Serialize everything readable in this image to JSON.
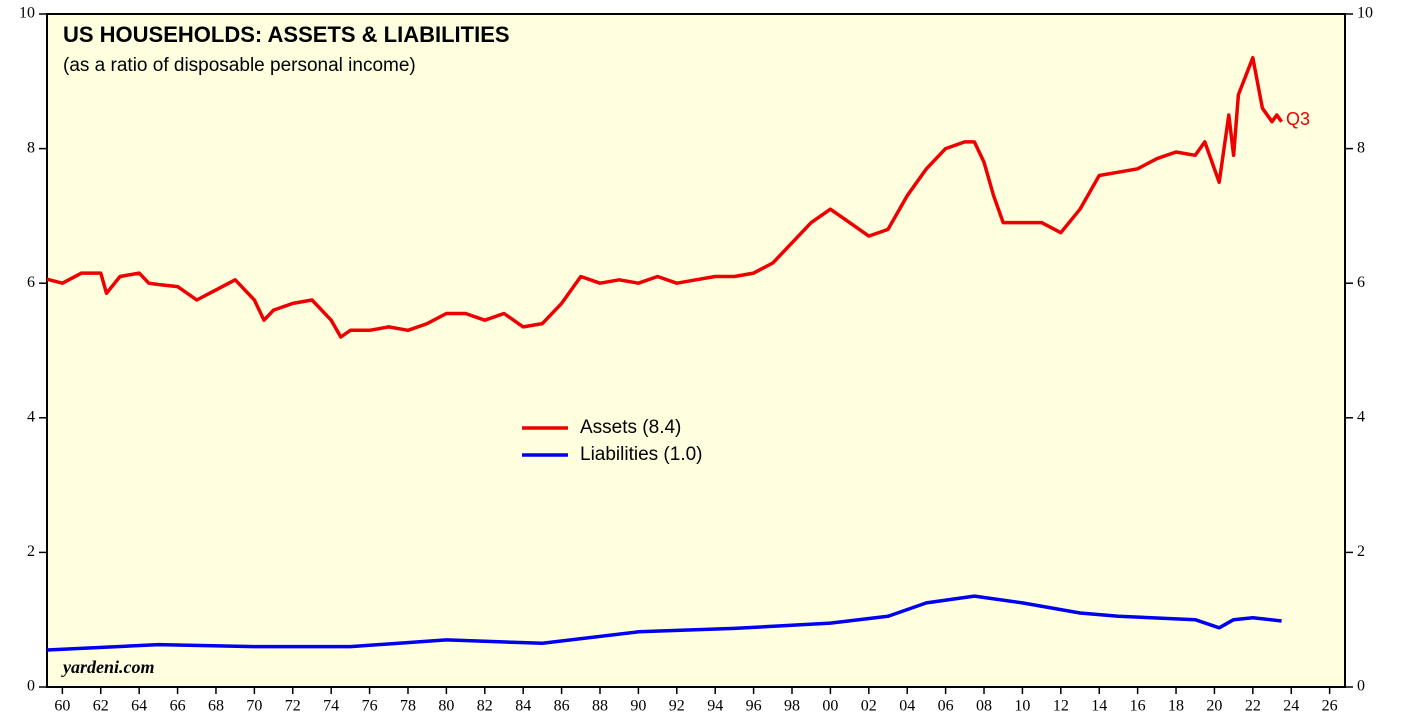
{
  "chart_data": {
    "type": "line",
    "title": "US HOUSEHOLDS: ASSETS & LIABILITIES",
    "subtitle": "(as a ratio of disposable personal income)",
    "source": "yardeni.com",
    "annotation": "Q3",
    "xlim": [
      1959.2,
      2026.8
    ],
    "ylim": [
      0,
      10
    ],
    "yticks": [
      0,
      2,
      4,
      6,
      8,
      10
    ],
    "xticks": [
      {
        "value": 1960,
        "label": "60"
      },
      {
        "value": 1962,
        "label": "62"
      },
      {
        "value": 1964,
        "label": "64"
      },
      {
        "value": 1966,
        "label": "66"
      },
      {
        "value": 1968,
        "label": "68"
      },
      {
        "value": 1970,
        "label": "70"
      },
      {
        "value": 1972,
        "label": "72"
      },
      {
        "value": 1974,
        "label": "74"
      },
      {
        "value": 1976,
        "label": "76"
      },
      {
        "value": 1978,
        "label": "78"
      },
      {
        "value": 1980,
        "label": "80"
      },
      {
        "value": 1982,
        "label": "82"
      },
      {
        "value": 1984,
        "label": "84"
      },
      {
        "value": 1986,
        "label": "86"
      },
      {
        "value": 1988,
        "label": "88"
      },
      {
        "value": 1990,
        "label": "90"
      },
      {
        "value": 1992,
        "label": "92"
      },
      {
        "value": 1994,
        "label": "94"
      },
      {
        "value": 1996,
        "label": "96"
      },
      {
        "value": 1998,
        "label": "98"
      },
      {
        "value": 2000,
        "label": "00"
      },
      {
        "value": 2002,
        "label": "02"
      },
      {
        "value": 2004,
        "label": "04"
      },
      {
        "value": 2006,
        "label": "06"
      },
      {
        "value": 2008,
        "label": "08"
      },
      {
        "value": 2010,
        "label": "10"
      },
      {
        "value": 2012,
        "label": "12"
      },
      {
        "value": 2014,
        "label": "14"
      },
      {
        "value": 2016,
        "label": "16"
      },
      {
        "value": 2018,
        "label": "18"
      },
      {
        "value": 2020,
        "label": "20"
      },
      {
        "value": 2022,
        "label": "22"
      },
      {
        "value": 2024,
        "label": "24"
      },
      {
        "value": 2026,
        "label": "26"
      }
    ],
    "series": [
      {
        "name": "Assets (8.4)",
        "color": "#ee0000",
        "x": [
          1959.2,
          1960,
          1961,
          1962,
          1962.3,
          1963,
          1964,
          1964.5,
          1965,
          1966,
          1967,
          1968,
          1969,
          1970,
          1970.5,
          1971,
          1972,
          1973,
          1974,
          1974.5,
          1975,
          1976,
          1977,
          1978,
          1979,
          1980,
          1981,
          1982,
          1983,
          1984,
          1985,
          1986,
          1987,
          1988,
          1989,
          1990,
          1991,
          1992,
          1993,
          1994,
          1995,
          1996,
          1997,
          1998,
          1999,
          2000,
          2001,
          2002,
          2003,
          2004,
          2005,
          2006,
          2007,
          2007.5,
          2008,
          2008.5,
          2009,
          2010,
          2011,
          2012,
          2013,
          2014,
          2015,
          2016,
          2017,
          2018,
          2019,
          2019.5,
          2020.25,
          2020.75,
          2021,
          2021.25,
          2022,
          2022.5,
          2023,
          2023.25,
          2023.5
        ],
        "values": [
          6.06,
          6.0,
          6.15,
          6.15,
          5.85,
          6.1,
          6.15,
          6.0,
          5.98,
          5.95,
          5.75,
          5.9,
          6.05,
          5.75,
          5.45,
          5.6,
          5.7,
          5.75,
          5.45,
          5.2,
          5.3,
          5.3,
          5.35,
          5.3,
          5.4,
          5.55,
          5.55,
          5.45,
          5.55,
          5.35,
          5.4,
          5.7,
          6.1,
          6.0,
          6.05,
          6.0,
          6.1,
          6.0,
          6.05,
          6.1,
          6.1,
          6.15,
          6.3,
          6.6,
          6.9,
          7.1,
          6.9,
          6.7,
          6.8,
          7.3,
          7.7,
          8.0,
          8.1,
          8.1,
          7.8,
          7.3,
          6.9,
          6.9,
          6.9,
          6.75,
          7.1,
          7.6,
          7.65,
          7.7,
          7.85,
          7.95,
          7.9,
          8.1,
          7.5,
          8.5,
          7.9,
          8.8,
          9.35,
          8.6,
          8.4,
          8.5,
          8.4
        ]
      },
      {
        "name": "Liabilities (1.0)",
        "color": "#0000ee",
        "x": [
          1959.2,
          1965,
          1970,
          1975,
          1980,
          1985,
          1990,
          1995,
          2000,
          2003,
          2005,
          2007.5,
          2010,
          2013,
          2015,
          2019,
          2020.25,
          2021,
          2022,
          2023.5
        ],
        "values": [
          0.55,
          0.63,
          0.6,
          0.6,
          0.7,
          0.65,
          0.82,
          0.87,
          0.95,
          1.05,
          1.25,
          1.35,
          1.25,
          1.1,
          1.05,
          1.0,
          0.88,
          1.0,
          1.03,
          0.98
        ]
      }
    ]
  }
}
